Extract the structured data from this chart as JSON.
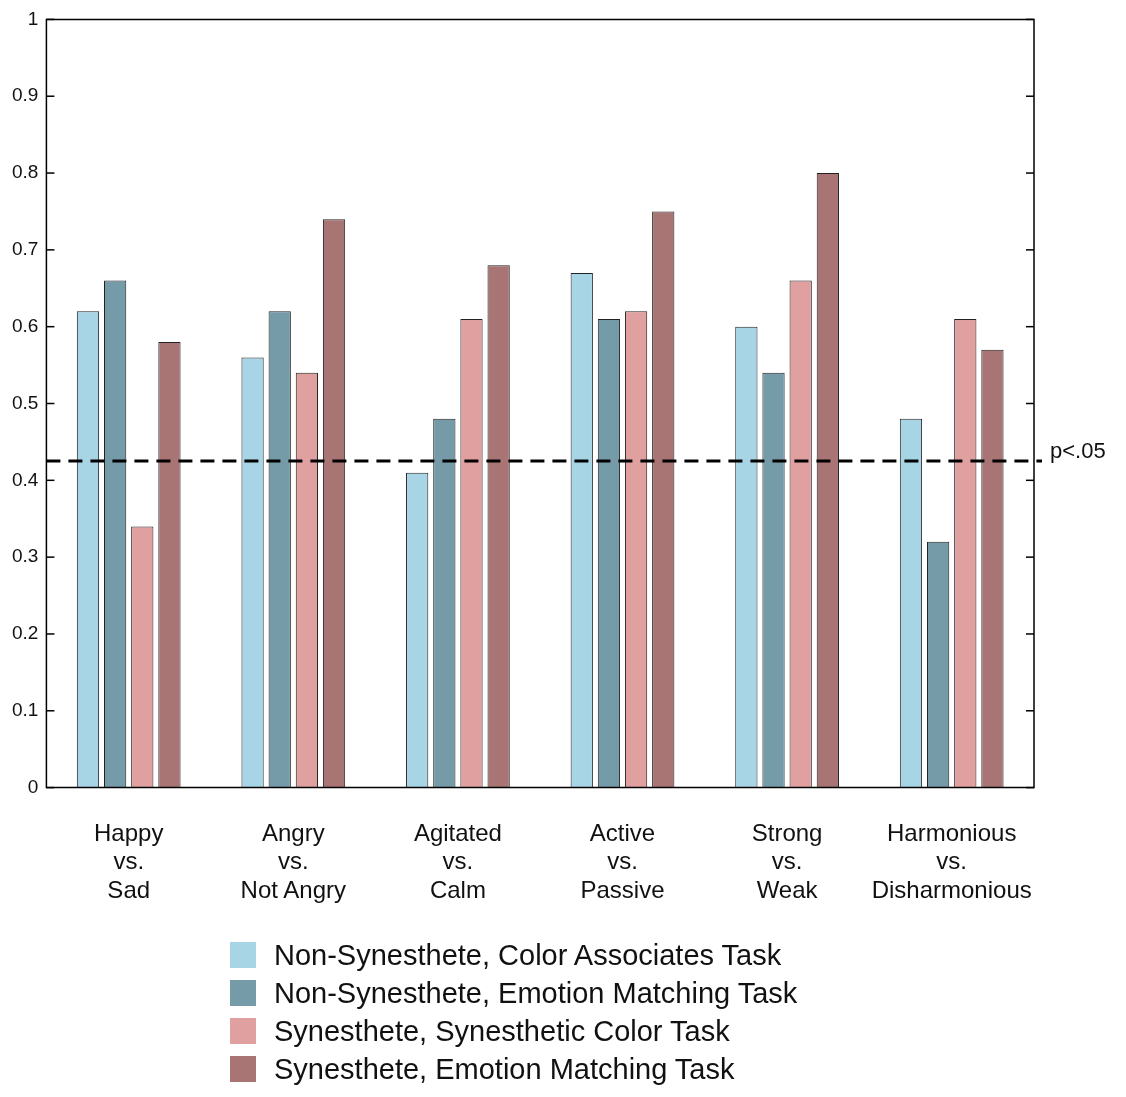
{
  "chart_data": {
    "type": "bar",
    "categories": [
      "Happy\nvs.\nSad",
      "Angry\nvs.\nNot Angry",
      "Agitated\nvs.\nCalm",
      "Active\nvs.\nPassive",
      "Strong\nvs.\nWeak",
      "Harmonious\nvs.\nDisharmonious"
    ],
    "series": [
      {
        "name": "Non-Synesthete, Color Associates Task",
        "color": "#a8d5e5",
        "values": [
          0.62,
          0.56,
          0.41,
          0.67,
          0.6,
          0.48
        ]
      },
      {
        "name": "Non-Synesthete, Emotion Matching Task",
        "color": "#769ba8",
        "values": [
          0.66,
          0.62,
          0.48,
          0.61,
          0.54,
          0.32
        ]
      },
      {
        "name": "Synesthete, Synesthetic Color Task",
        "color": "#e0a0a0",
        "values": [
          0.34,
          0.54,
          0.61,
          0.62,
          0.66,
          0.61
        ]
      },
      {
        "name": "Synesthete, Emotion Matching Task",
        "color": "#a87474",
        "values": [
          0.58,
          0.74,
          0.68,
          0.75,
          0.8,
          0.57
        ]
      }
    ],
    "ylim": [
      0,
      1
    ],
    "yticks": [
      0,
      0.1,
      0.2,
      0.3,
      0.4,
      0.5,
      0.6,
      0.7,
      0.8,
      0.9,
      1
    ],
    "ref_lines": [
      {
        "axis": "y",
        "value": 0.425,
        "label": "p<.05",
        "line_style": "dashed",
        "color": "#000000"
      }
    ],
    "grid": false,
    "legend": "bottom"
  }
}
